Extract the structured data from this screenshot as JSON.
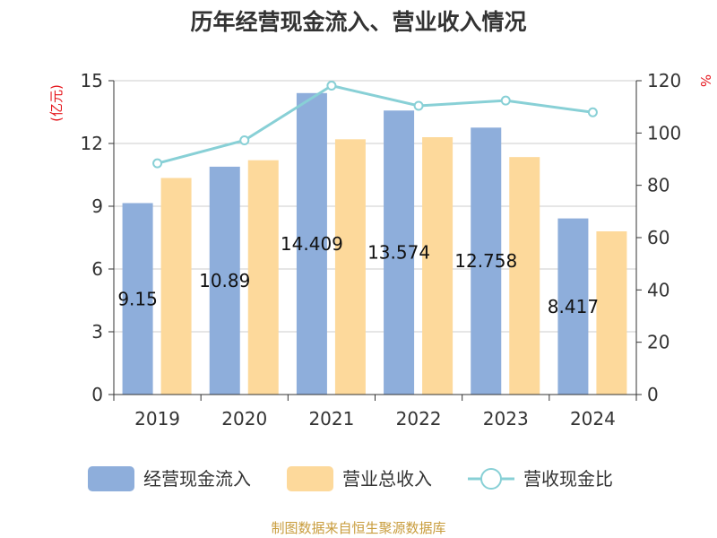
{
  "chart_data": {
    "type": "bar",
    "title": "历年经营现金流入、营业收入情况",
    "categories": [
      "2019",
      "2020",
      "2021",
      "2022",
      "2023",
      "2024"
    ],
    "series": [
      {
        "name": "经营现金流入",
        "axis": "left",
        "color": "#8eaedb",
        "values": [
          9.15,
          10.89,
          14.409,
          13.574,
          12.758,
          8.417
        ],
        "labels": [
          "9.15",
          "10.89",
          "14.409",
          "13.574",
          "12.758",
          "8.417"
        ]
      },
      {
        "name": "营业总收入",
        "axis": "left",
        "color": "#fdd99b",
        "values": [
          10.35,
          11.2,
          12.2,
          12.3,
          11.35,
          7.8
        ]
      },
      {
        "name": "营收现金比",
        "axis": "right",
        "type": "line",
        "color": "#88d0d6",
        "values": [
          88.4,
          97.2,
          118.1,
          110.4,
          112.4,
          107.9
        ]
      }
    ],
    "ylabel_left": "(亿元)",
    "ylabel_right": "%",
    "ylim_left": [
      0,
      15
    ],
    "yticks_left": [
      0,
      3,
      6,
      9,
      12,
      15
    ],
    "ylim_right": [
      0,
      120
    ],
    "yticks_right": [
      0,
      20,
      40,
      60,
      80,
      100,
      120
    ],
    "grid": true,
    "legend": "bottom"
  },
  "source": "制图数据来自恒生聚源数据库"
}
